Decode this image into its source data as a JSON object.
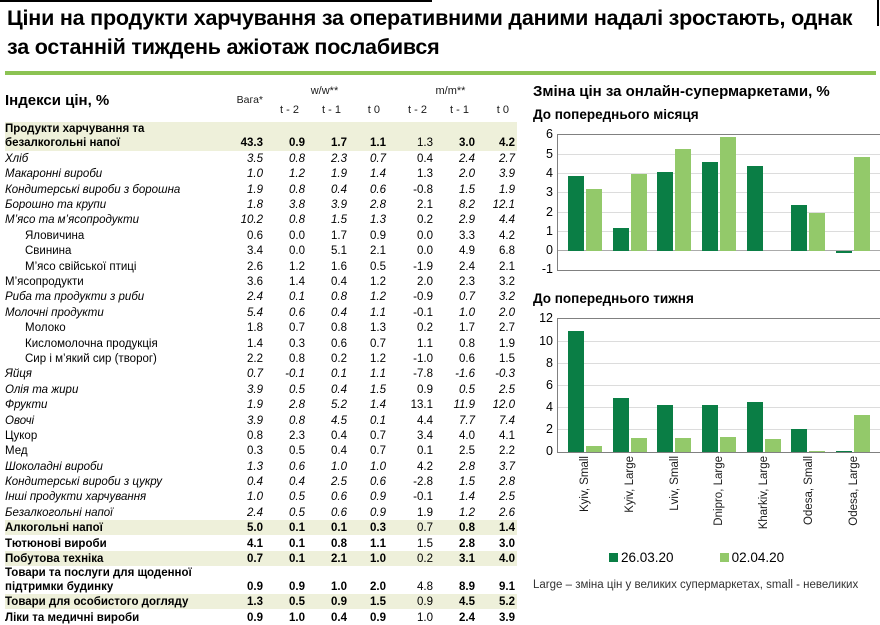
{
  "title": "Ціни на продукти харчування за оперативними даними надалі зростають, однак за останній тиждень ажіотаж послабився",
  "table": {
    "title": "Індекси цін, %",
    "col_weight": "Вага*",
    "group_ww": "w/w**",
    "group_mm": "m/m**",
    "subcols": [
      "t - 2",
      "t - 1",
      "t 0",
      "t - 2",
      "t - 1",
      "t 0"
    ],
    "rows": [
      {
        "label": "Продукти харчування та безалкогольні напої",
        "bold": true,
        "highlight": true,
        "values": [
          "43.3",
          "0.9",
          "1.7",
          "1.1",
          "1.3",
          "3.0",
          "4.2"
        ]
      },
      {
        "label": "Хліб",
        "italic": true,
        "values": [
          "3.5",
          "0.8",
          "2.3",
          "0.7",
          "0.4",
          "2.4",
          "2.7"
        ]
      },
      {
        "label": "Макаронні вироби",
        "italic": true,
        "values": [
          "1.0",
          "1.2",
          "1.9",
          "1.4",
          "1.3",
          "2.0",
          "3.9"
        ]
      },
      {
        "label": "Кондитерські вироби з борошна",
        "italic": true,
        "values": [
          "1.9",
          "0.8",
          "0.4",
          "0.6",
          "-0.8",
          "1.5",
          "1.9"
        ]
      },
      {
        "label": "Борошно та крупи",
        "italic": true,
        "values": [
          "1.8",
          "3.8",
          "3.9",
          "2.8",
          "2.1",
          "8.2",
          "12.1"
        ]
      },
      {
        "label": "М’ясо та м’ясопродукти",
        "italic": true,
        "values": [
          "10.2",
          "0.8",
          "1.5",
          "1.3",
          "0.2",
          "2.9",
          "4.4"
        ]
      },
      {
        "label": "Яловичина",
        "indent": true,
        "values": [
          "0.6",
          "0.0",
          "1.7",
          "0.9",
          "0.0",
          "3.3",
          "4.2"
        ]
      },
      {
        "label": "Свинина",
        "indent": true,
        "values": [
          "3.4",
          "0.0",
          "5.1",
          "2.1",
          "0.0",
          "4.9",
          "6.8"
        ]
      },
      {
        "label": "М’ясо свійської птиці",
        "indent": true,
        "values": [
          "2.6",
          "1.2",
          "1.6",
          "0.5",
          "-1.9",
          "2.4",
          "2.1"
        ]
      },
      {
        "label": "М’ясопродукти",
        "values": [
          "3.6",
          "1.4",
          "0.4",
          "1.2",
          "2.0",
          "2.3",
          "3.2"
        ]
      },
      {
        "label": "Риба та продукти з риби",
        "italic": true,
        "values": [
          "2.4",
          "0.1",
          "0.8",
          "1.2",
          "-0.9",
          "0.7",
          "3.2"
        ]
      },
      {
        "label": "Молочні продукти",
        "italic": true,
        "values": [
          "5.4",
          "0.6",
          "0.4",
          "1.1",
          "-0.1",
          "1.0",
          "2.0"
        ]
      },
      {
        "label": "Молоко",
        "indent": true,
        "values": [
          "1.8",
          "0.7",
          "0.8",
          "1.3",
          "0.2",
          "1.7",
          "2.7"
        ]
      },
      {
        "label": "Кисломолочна продукція",
        "indent": true,
        "values": [
          "1.4",
          "0.3",
          "0.6",
          "0.7",
          "1.1",
          "0.8",
          "1.9"
        ]
      },
      {
        "label": "Сир і м’який сир (творог)",
        "indent": true,
        "values": [
          "2.2",
          "0.8",
          "0.2",
          "1.2",
          "-1.0",
          "0.6",
          "1.5"
        ]
      },
      {
        "label": "Яйця",
        "italic": true,
        "values": [
          "0.7",
          "-0.1",
          "0.1",
          "1.1",
          "-7.8",
          "-1.6",
          "-0.3"
        ]
      },
      {
        "label": "Олія та жири",
        "italic": true,
        "values": [
          "3.9",
          "0.5",
          "0.4",
          "1.5",
          "0.9",
          "0.5",
          "2.5"
        ]
      },
      {
        "label": "Фрукти",
        "italic": true,
        "values": [
          "1.9",
          "2.8",
          "5.2",
          "1.4",
          "13.1",
          "11.9",
          "12.0"
        ]
      },
      {
        "label": "Овочі",
        "italic": true,
        "values": [
          "3.9",
          "0.8",
          "4.5",
          "0.1",
          "4.4",
          "7.7",
          "7.4"
        ]
      },
      {
        "label": "Цукор",
        "values": [
          "0.8",
          "2.3",
          "0.4",
          "0.7",
          "3.4",
          "4.0",
          "4.1"
        ]
      },
      {
        "label": "Мед",
        "values": [
          "0.3",
          "0.5",
          "0.4",
          "0.7",
          "0.1",
          "2.5",
          "2.2"
        ]
      },
      {
        "label": "Шоколадні вироби",
        "italic": true,
        "values": [
          "1.3",
          "0.6",
          "1.0",
          "1.0",
          "4.2",
          "2.8",
          "3.7"
        ]
      },
      {
        "label": "Кондитерські вироби з цукру",
        "italic": true,
        "values": [
          "0.4",
          "0.4",
          "2.5",
          "0.6",
          "-2.8",
          "1.5",
          "2.8"
        ]
      },
      {
        "label": "Інші продукти харчування",
        "italic": true,
        "values": [
          "1.0",
          "0.5",
          "0.6",
          "0.9",
          "-0.1",
          "1.4",
          "2.5"
        ]
      },
      {
        "label": "Безалкогольні напої",
        "italic": true,
        "values": [
          "2.4",
          "0.5",
          "0.6",
          "0.9",
          "1.9",
          "1.2",
          "2.6"
        ]
      },
      {
        "label": "Алкогольні напої",
        "bold": true,
        "highlight": true,
        "values": [
          "5.0",
          "0.1",
          "0.1",
          "0.3",
          "0.7",
          "0.8",
          "1.4"
        ]
      },
      {
        "label": "Тютюнові вироби",
        "bold": true,
        "values": [
          "4.1",
          "0.1",
          "0.8",
          "1.1",
          "1.5",
          "2.8",
          "3.0"
        ]
      },
      {
        "label": "Побутова техніка",
        "bold": true,
        "highlight": true,
        "values": [
          "0.7",
          "0.1",
          "2.1",
          "1.0",
          "0.2",
          "3.1",
          "4.0"
        ]
      },
      {
        "label": "Товари та послуги для щоденної підтримки будинку",
        "bold": true,
        "values": [
          "0.9",
          "0.9",
          "1.0",
          "2.0",
          "4.8",
          "8.9",
          "9.1"
        ]
      },
      {
        "label": "Товари для особистого догляду",
        "bold": true,
        "highlight": true,
        "values": [
          "1.3",
          "0.5",
          "0.9",
          "1.5",
          "0.9",
          "4.5",
          "5.2"
        ]
      },
      {
        "label": "Ліки та медичні вироби",
        "bold": true,
        "values": [
          "0.9",
          "1.0",
          "0.4",
          "0.9",
          "1.0",
          "2.4",
          "3.9"
        ]
      }
    ]
  },
  "charts": {
    "title": "Зміна цін за онлайн-супермаркетами, %",
    "colors": {
      "series1": "#0a7e45",
      "series2": "#93c96a"
    },
    "legend": [
      {
        "label": "26.03.20",
        "color": "#0a7e45"
      },
      {
        "label": "02.04.20",
        "color": "#93c96a"
      }
    ],
    "footnote": "Large – зміна цін у великих супермаркетах, small - невеликих"
  },
  "chart_data": [
    {
      "type": "bar",
      "title": "До попереднього місяця",
      "categories": [
        "Kyiv, Small",
        "Kyiv, Large",
        "Lviv, Small",
        "Dnipro, Large",
        "Kharkiv, Large",
        "Odesa, Small",
        "Odesa, Large"
      ],
      "series": [
        {
          "name": "26.03.20",
          "values": [
            3.9,
            1.2,
            4.1,
            4.6,
            4.4,
            2.4,
            -0.1
          ]
        },
        {
          "name": "02.04.20",
          "values": [
            3.2,
            4.0,
            5.3,
            5.9,
            null,
            2.0,
            4.9
          ]
        }
      ],
      "ylim": [
        -1,
        6
      ],
      "ytick": 1,
      "grid": true,
      "legend_position": "bottom"
    },
    {
      "type": "bar",
      "title": "До попереднього тижня",
      "categories": [
        "Kyiv, Small",
        "Kyiv, Large",
        "Lviv, Small",
        "Dnipro, Large",
        "Kharkiv, Large",
        "Odesa, Small",
        "Odesa, Large"
      ],
      "series": [
        {
          "name": "26.03.20",
          "values": [
            11.0,
            4.9,
            4.3,
            4.3,
            4.6,
            2.1,
            0.1
          ]
        },
        {
          "name": "02.04.20",
          "values": [
            0.6,
            1.3,
            1.3,
            1.4,
            1.2,
            0.1,
            3.4
          ]
        }
      ],
      "ylim": [
        0,
        12
      ],
      "ytick": 2,
      "grid": true,
      "legend_position": "bottom"
    }
  ]
}
